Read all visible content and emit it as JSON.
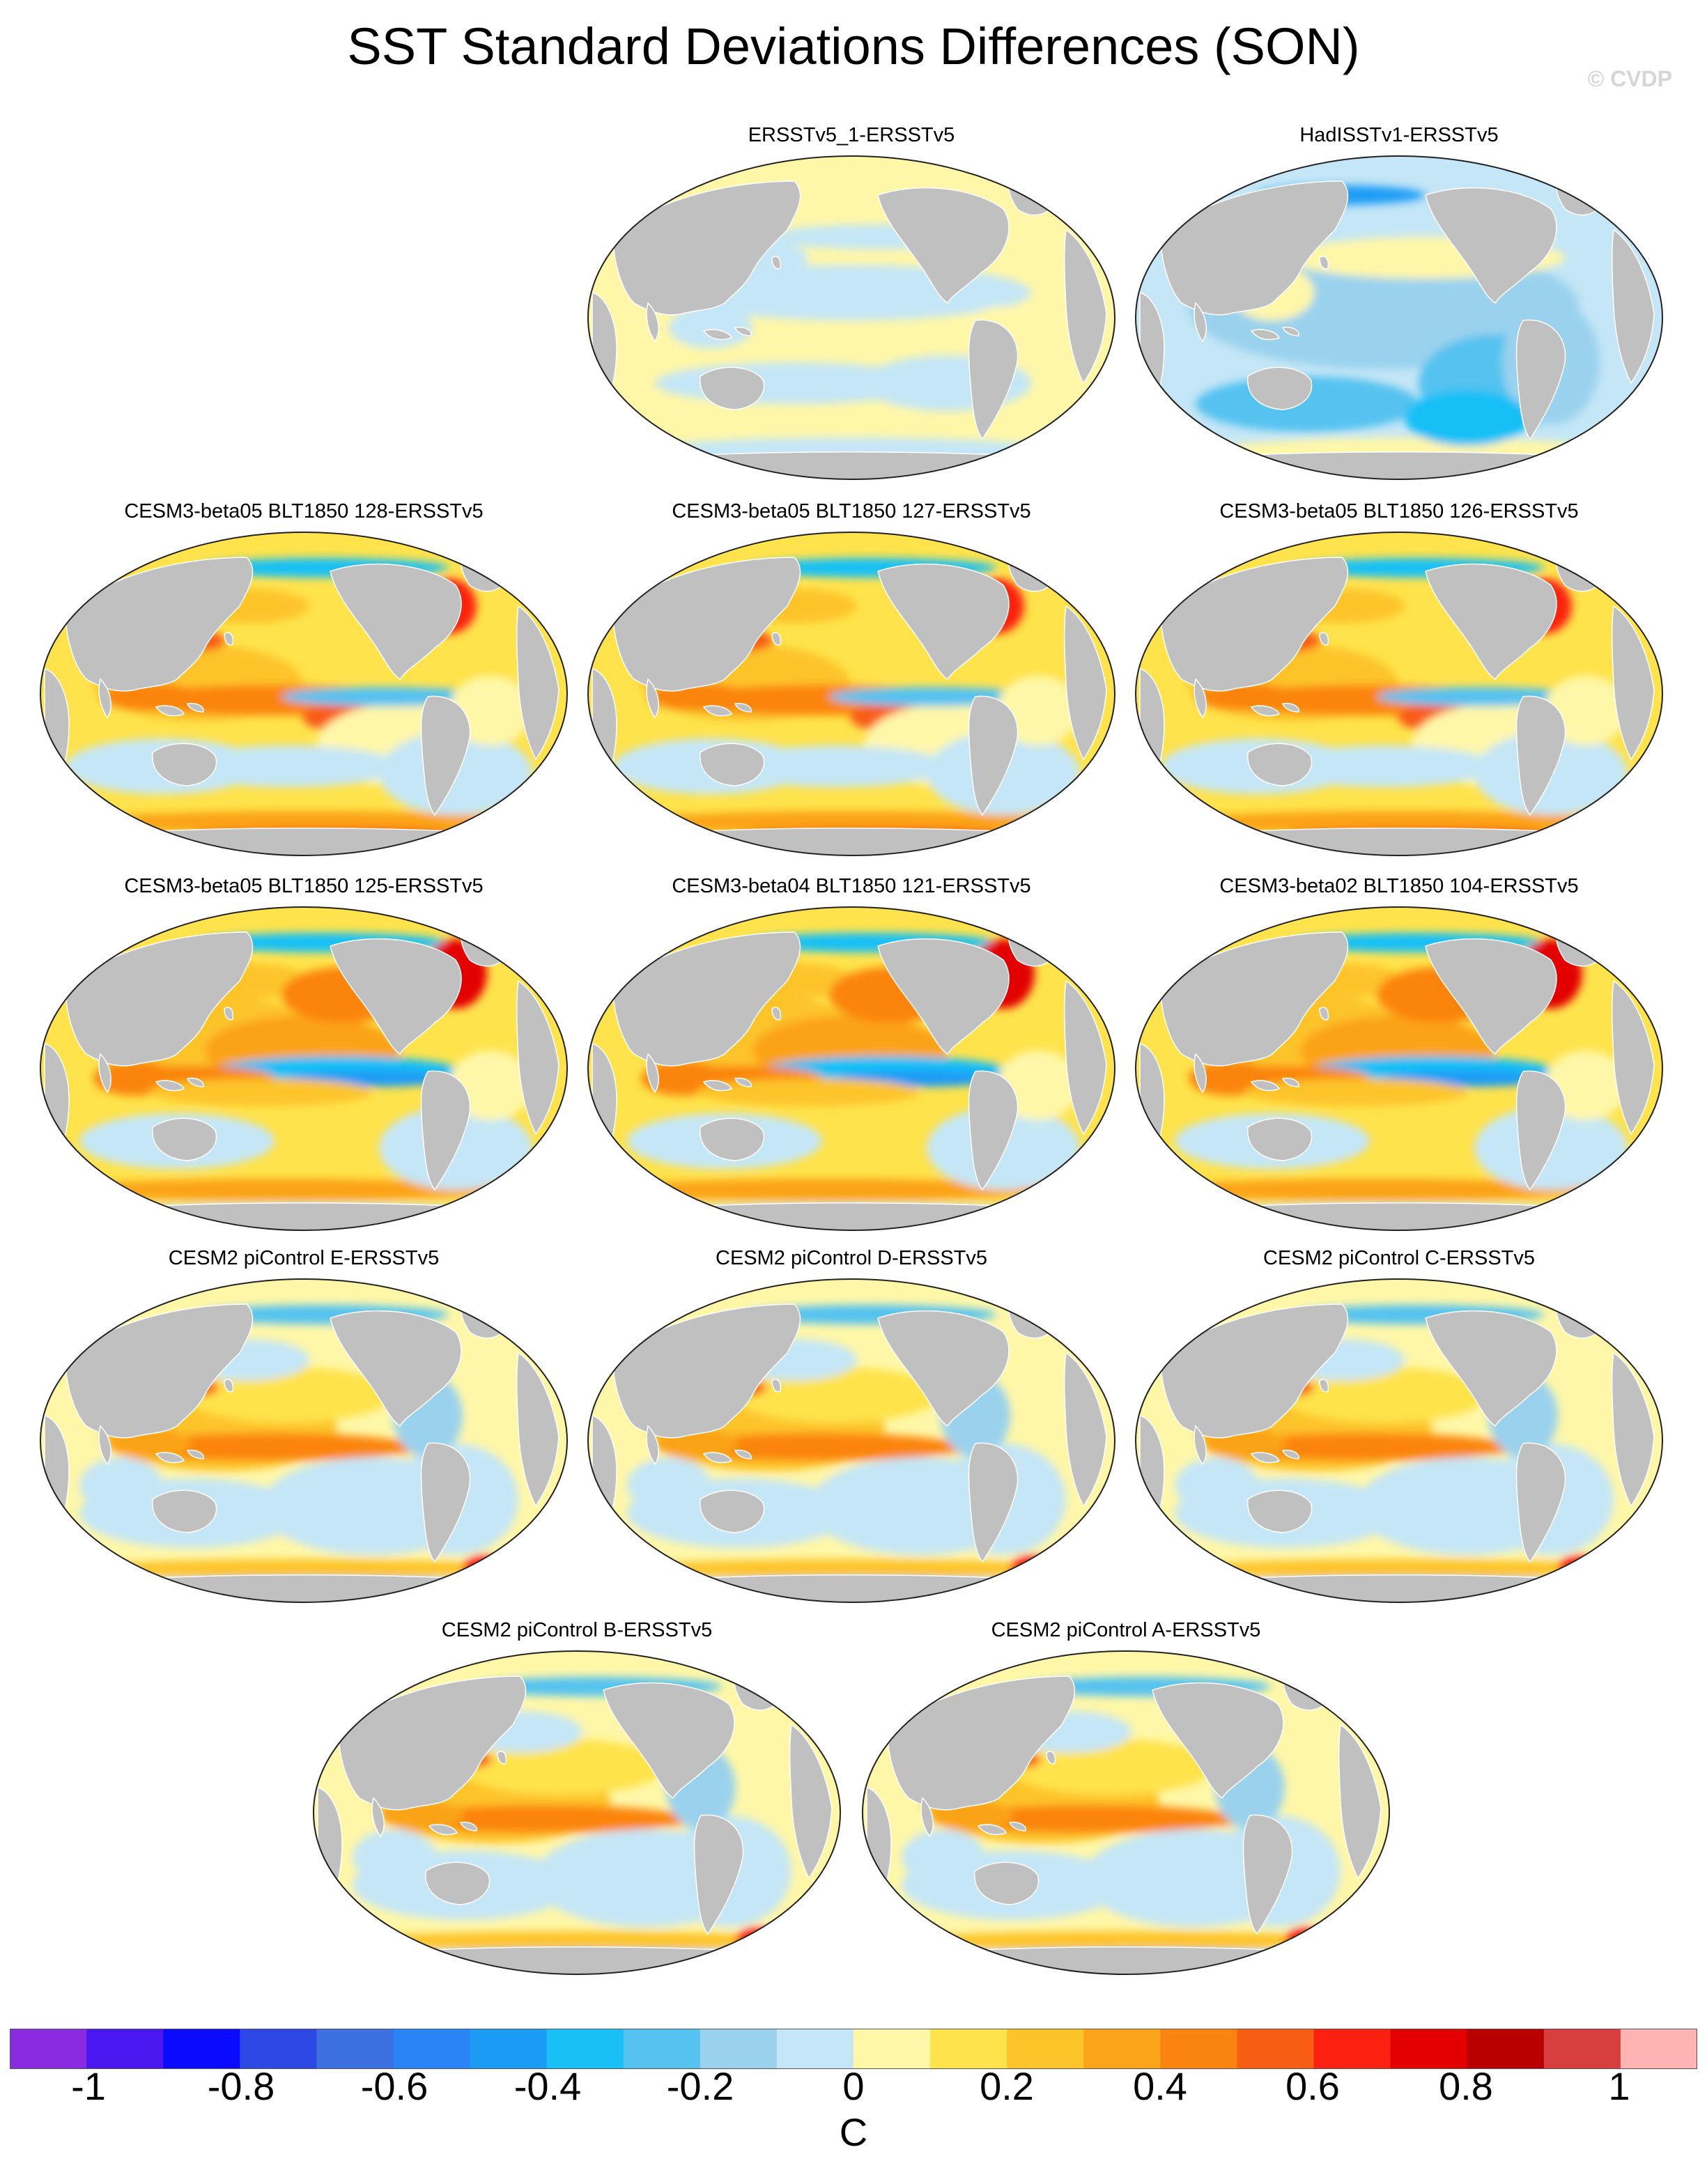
{
  "title": "SST Standard Deviations Differences (SON)",
  "watermark": "© CVDP",
  "panels": [
    {
      "label": "ERSSTv5_1-ERSSTv5",
      "style": "obs1"
    },
    {
      "label": "HadISSTv1-ERSSTv5",
      "style": "obs2"
    },
    {
      "label": "CESM3-beta05 BLT1850 128-ERSSTv5",
      "style": "model"
    },
    {
      "label": "CESM3-beta05 BLT1850 127-ERSSTv5",
      "style": "model"
    },
    {
      "label": "CESM3-beta05 BLT1850 126-ERSSTv5",
      "style": "model"
    },
    {
      "label": "CESM3-beta05 BLT1850 125-ERSSTv5",
      "style": "model-cold"
    },
    {
      "label": "CESM3-beta04 BLT1850 121-ERSSTv5",
      "style": "model-cold"
    },
    {
      "label": "CESM3-beta02 BLT1850 104-ERSSTv5",
      "style": "model-cold"
    },
    {
      "label": "CESM2 piControl E-ERSSTv5",
      "style": "cesm2"
    },
    {
      "label": "CESM2 piControl D-ERSSTv5",
      "style": "cesm2"
    },
    {
      "label": "CESM2 piControl C-ERSSTv5",
      "style": "cesm2"
    },
    {
      "label": "CESM2 piControl B-ERSSTv5",
      "style": "cesm2"
    },
    {
      "label": "CESM2 piControl A-ERSSTv5",
      "style": "cesm2"
    }
  ],
  "colorbar": {
    "unit": "C",
    "tick_labels": [
      "-1",
      "-0.8",
      "-0.6",
      "-0.4",
      "-0.2",
      "0",
      "0.2",
      "0.4",
      "0.6",
      "0.8",
      "1"
    ],
    "colors": [
      "#8a2be2",
      "#4b17f0",
      "#0a0aff",
      "#2e48e6",
      "#3c6fe0",
      "#2a84f5",
      "#1a9cf5",
      "#18c0f6",
      "#55c2f0",
      "#9ad2ee",
      "#c4e6f6",
      "#fff7a8",
      "#ffe34c",
      "#fdc42a",
      "#fba319",
      "#fb8411",
      "#f85d14",
      "#fc2010",
      "#e30000",
      "#b80000",
      "#d93e3e",
      "#ffb3b3"
    ]
  },
  "land_color": "#c0c0c0"
}
